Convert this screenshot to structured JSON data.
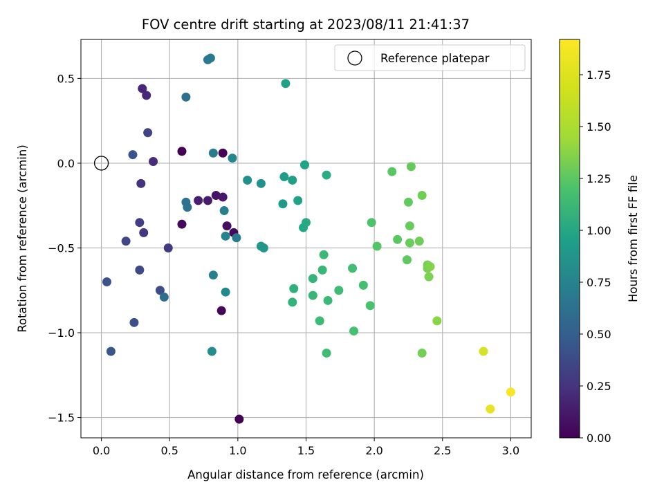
{
  "chart_data": {
    "type": "scatter",
    "title": "FOV centre drift starting at 2023/08/11 21:41:37",
    "xlabel": "Angular distance from reference (arcmin)",
    "ylabel": "Rotation from reference (arcmin)",
    "xlim": [
      -0.15,
      3.15
    ],
    "ylim": [
      -1.62,
      0.73
    ],
    "x_ticks": [
      0.0,
      0.5,
      1.0,
      1.5,
      2.0,
      2.5,
      3.0
    ],
    "x_tick_labels": [
      "0.0",
      "0.5",
      "1.0",
      "1.5",
      "2.0",
      "2.5",
      "3.0"
    ],
    "y_ticks": [
      0.5,
      0.0,
      -0.5,
      -1.0,
      -1.5
    ],
    "y_tick_labels": [
      "0.5",
      "0.0",
      "−0.5",
      "−1.0",
      "−1.5"
    ],
    "grid": true,
    "colormap": "viridis",
    "colorbar": {
      "label": "Hours from first FF file",
      "range": [
        0.0,
        1.92
      ],
      "ticks": [
        0.0,
        0.25,
        0.5,
        0.75,
        1.0,
        1.25,
        1.5,
        1.75
      ],
      "tick_labels": [
        "0.00",
        "0.25",
        "0.50",
        "0.75",
        "1.00",
        "1.25",
        "1.50",
        "1.75"
      ]
    },
    "legend": {
      "placement": "top-right",
      "entries": [
        "Reference platepar"
      ]
    },
    "reference_point": {
      "x": 0.0,
      "y": 0.0,
      "label": "Reference platepar"
    },
    "points": [
      {
        "x": 1.01,
        "y": -1.51,
        "t": 0.0
      },
      {
        "x": 0.59,
        "y": 0.07,
        "t": 0.0
      },
      {
        "x": 0.89,
        "y": 0.06,
        "t": 0.02
      },
      {
        "x": 0.88,
        "y": -0.87,
        "t": 0.03
      },
      {
        "x": 0.97,
        "y": -0.41,
        "t": 0.05
      },
      {
        "x": 0.59,
        "y": -0.36,
        "t": 0.05
      },
      {
        "x": 0.92,
        "y": -0.37,
        "t": 0.08
      },
      {
        "x": 0.84,
        "y": -0.19,
        "t": 0.1
      },
      {
        "x": 0.89,
        "y": -0.2,
        "t": 0.12
      },
      {
        "x": 0.78,
        "y": -0.22,
        "t": 0.14
      },
      {
        "x": 0.71,
        "y": -0.22,
        "t": 0.16
      },
      {
        "x": 0.3,
        "y": 0.44,
        "t": 0.2
      },
      {
        "x": 0.33,
        "y": 0.4,
        "t": 0.22
      },
      {
        "x": 0.38,
        "y": 0.01,
        "t": 0.25
      },
      {
        "x": 0.29,
        "y": -0.12,
        "t": 0.28
      },
      {
        "x": 0.31,
        "y": -0.41,
        "t": 0.3
      },
      {
        "x": 0.49,
        "y": -0.5,
        "t": 0.33
      },
      {
        "x": 0.28,
        "y": -0.35,
        "t": 0.35
      },
      {
        "x": 0.34,
        "y": 0.18,
        "t": 0.37
      },
      {
        "x": 0.18,
        "y": -0.46,
        "t": 0.4
      },
      {
        "x": 0.28,
        "y": -0.63,
        "t": 0.42
      },
      {
        "x": 0.43,
        "y": -0.75,
        "t": 0.44
      },
      {
        "x": 0.24,
        "y": -0.94,
        "t": 0.46
      },
      {
        "x": 0.04,
        "y": -0.7,
        "t": 0.48
      },
      {
        "x": 0.23,
        "y": 0.05,
        "t": 0.5
      },
      {
        "x": 0.07,
        "y": -1.11,
        "t": 0.52
      },
      {
        "x": 0.46,
        "y": -0.79,
        "t": 0.68
      },
      {
        "x": 0.62,
        "y": 0.39,
        "t": 0.7
      },
      {
        "x": 0.62,
        "y": -0.23,
        "t": 0.72
      },
      {
        "x": 0.63,
        "y": -0.26,
        "t": 0.74
      },
      {
        "x": 0.78,
        "y": 0.61,
        "t": 0.76
      },
      {
        "x": 0.8,
        "y": 0.62,
        "t": 0.78
      },
      {
        "x": 0.82,
        "y": 0.06,
        "t": 0.8
      },
      {
        "x": 0.82,
        "y": -0.66,
        "t": 0.82
      },
      {
        "x": 0.9,
        "y": -0.28,
        "t": 0.84
      },
      {
        "x": 0.91,
        "y": -0.43,
        "t": 0.86
      },
      {
        "x": 0.99,
        "y": -0.44,
        "t": 0.8
      },
      {
        "x": 0.96,
        "y": 0.03,
        "t": 0.88
      },
      {
        "x": 0.91,
        "y": -0.76,
        "t": 0.9
      },
      {
        "x": 0.81,
        "y": -1.11,
        "t": 0.92
      },
      {
        "x": 1.07,
        "y": -0.1,
        "t": 0.95
      },
      {
        "x": 1.17,
        "y": -0.12,
        "t": 0.97
      },
      {
        "x": 1.17,
        "y": -0.49,
        "t": 0.99
      },
      {
        "x": 1.19,
        "y": -0.5,
        "t": 1.01
      },
      {
        "x": 1.33,
        "y": -0.24,
        "t": 1.03
      },
      {
        "x": 1.34,
        "y": -0.08,
        "t": 1.05
      },
      {
        "x": 1.4,
        "y": -0.1,
        "t": 1.07
      },
      {
        "x": 1.35,
        "y": 0.47,
        "t": 1.09
      },
      {
        "x": 1.44,
        "y": -0.22,
        "t": 1.11
      },
      {
        "x": 1.49,
        "y": -0.01,
        "t": 1.13
      },
      {
        "x": 1.48,
        "y": -0.38,
        "t": 1.15
      },
      {
        "x": 1.5,
        "y": -0.35,
        "t": 1.17
      },
      {
        "x": 1.65,
        "y": -0.07,
        "t": 1.2
      },
      {
        "x": 1.41,
        "y": -0.74,
        "t": 1.22
      },
      {
        "x": 1.4,
        "y": -0.82,
        "t": 1.24
      },
      {
        "x": 1.55,
        "y": -0.68,
        "t": 1.25
      },
      {
        "x": 1.55,
        "y": -0.78,
        "t": 1.27
      },
      {
        "x": 1.62,
        "y": -0.63,
        "t": 1.28
      },
      {
        "x": 1.63,
        "y": -0.54,
        "t": 1.29
      },
      {
        "x": 1.6,
        "y": -0.93,
        "t": 1.3
      },
      {
        "x": 1.66,
        "y": -0.81,
        "t": 1.3
      },
      {
        "x": 1.74,
        "y": -0.75,
        "t": 1.31
      },
      {
        "x": 1.65,
        "y": -1.12,
        "t": 1.32
      },
      {
        "x": 1.84,
        "y": -0.62,
        "t": 1.33
      },
      {
        "x": 1.92,
        "y": -0.72,
        "t": 1.34
      },
      {
        "x": 1.85,
        "y": -0.99,
        "t": 1.35
      },
      {
        "x": 1.97,
        "y": -0.84,
        "t": 1.36
      },
      {
        "x": 1.98,
        "y": -0.35,
        "t": 1.38
      },
      {
        "x": 2.02,
        "y": -0.49,
        "t": 1.4
      },
      {
        "x": 2.13,
        "y": -0.05,
        "t": 1.42
      },
      {
        "x": 2.17,
        "y": -0.45,
        "t": 1.43
      },
      {
        "x": 2.24,
        "y": -0.57,
        "t": 1.44
      },
      {
        "x": 2.25,
        "y": -0.23,
        "t": 1.45
      },
      {
        "x": 2.27,
        "y": -0.02,
        "t": 1.46
      },
      {
        "x": 2.26,
        "y": -0.37,
        "t": 1.47
      },
      {
        "x": 2.26,
        "y": -0.47,
        "t": 1.48
      },
      {
        "x": 2.33,
        "y": -0.46,
        "t": 1.49
      },
      {
        "x": 2.35,
        "y": -0.19,
        "t": 1.5
      },
      {
        "x": 2.35,
        "y": -1.12,
        "t": 1.51
      },
      {
        "x": 2.39,
        "y": -0.6,
        "t": 1.52
      },
      {
        "x": 2.39,
        "y": -0.62,
        "t": 1.53
      },
      {
        "x": 2.4,
        "y": -0.67,
        "t": 1.54
      },
      {
        "x": 2.41,
        "y": -0.61,
        "t": 1.56
      },
      {
        "x": 2.46,
        "y": -0.93,
        "t": 1.58
      },
      {
        "x": 2.8,
        "y": -1.11,
        "t": 1.8
      },
      {
        "x": 2.85,
        "y": -1.45,
        "t": 1.85
      },
      {
        "x": 3.0,
        "y": -1.35,
        "t": 1.9
      }
    ]
  }
}
